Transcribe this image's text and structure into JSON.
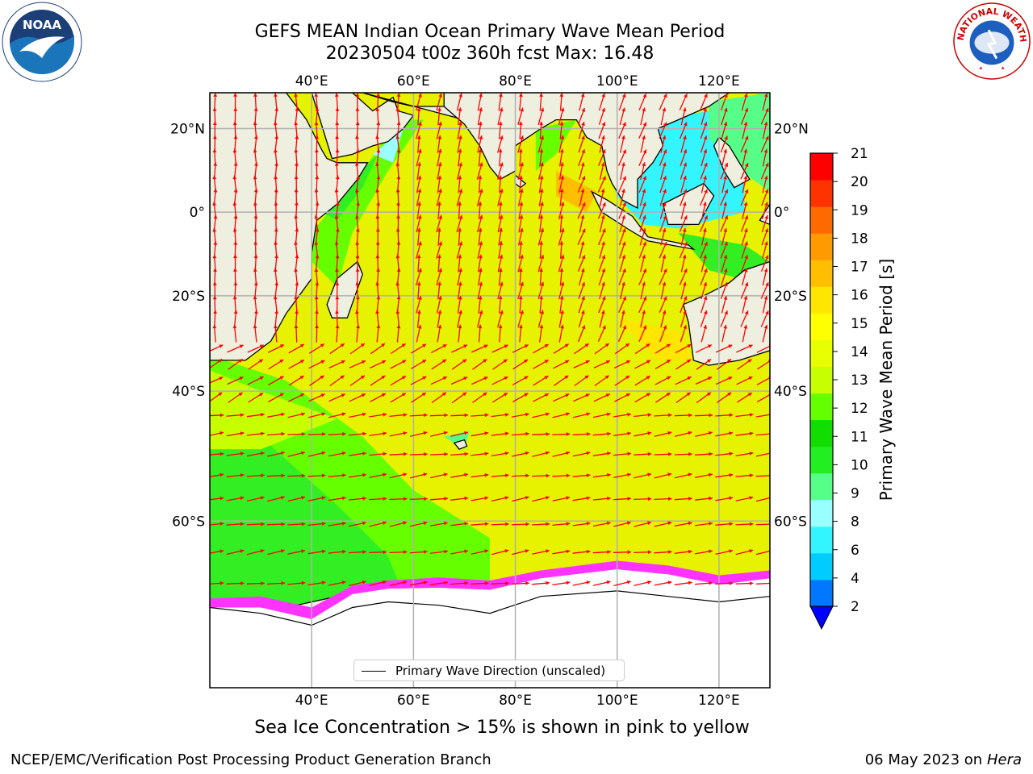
{
  "header": {
    "title_line1": "GEFS MEAN Indian Ocean Primary Wave Mean Period",
    "title_line2": "20230504 t00z 360h fcst   Max: 16.48"
  },
  "logos": {
    "left": "noaa-logo-icon",
    "right": "nws-logo-icon",
    "noaa_text": "NOAA",
    "nws_text": "NATIONAL WEATHER SERVICE"
  },
  "map": {
    "lon_labels": [
      "40°E",
      "60°E",
      "80°E",
      "100°E",
      "120°E"
    ],
    "lat_labels": [
      "20°N",
      "0°",
      "20°S",
      "40°S",
      "60°S"
    ],
    "lon_values": [
      40,
      60,
      80,
      100,
      120
    ],
    "lat_values": [
      20,
      0,
      -20,
      -40,
      -60
    ],
    "extent": {
      "lon": [
        20,
        130
      ],
      "lat": [
        -75,
        28
      ]
    },
    "ocean_color": "#e6f200",
    "land_color": "#efefdf",
    "ice_color": "#ff33ff",
    "arrow_color": "#ff0000",
    "grid": true
  },
  "legend": {
    "label": "Primary Wave Direction (unscaled)"
  },
  "colorbar": {
    "label": "Primary Wave Mean Period [s]",
    "levels": [
      2,
      4,
      6,
      8,
      9,
      10,
      11,
      12,
      13,
      14,
      15,
      16,
      17,
      18,
      19,
      20,
      21
    ],
    "tick_labels": [
      "2",
      "4",
      "6",
      "8",
      "9",
      "10",
      "11",
      "12",
      "13",
      "14",
      "15",
      "16",
      "17",
      "18",
      "19",
      "20",
      "21"
    ],
    "colors": [
      "#0077ff",
      "#00ccff",
      "#33f5ff",
      "#99ffff",
      "#55ff88",
      "#22ee22",
      "#11dd00",
      "#66ff00",
      "#c8ff00",
      "#e8ff00",
      "#ffff00",
      "#ffe600",
      "#ffbf00",
      "#ff9a00",
      "#ff6a00",
      "#ff3300",
      "#ff0000"
    ],
    "under_color": "#0000ff"
  },
  "footer": {
    "note": "Sea Ice Concentration > 15% is shown in pink to yellow",
    "credit": "NCEP/EMC/Verification Post Processing Product Generation Branch",
    "date": "06 May 2023 on",
    "machine": "Hera"
  }
}
